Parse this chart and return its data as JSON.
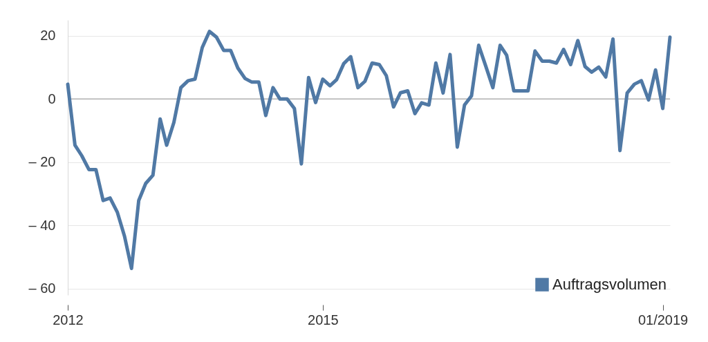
{
  "chart_data": {
    "type": "line",
    "x": [
      "2012-01",
      "2012-02",
      "2012-03",
      "2012-04",
      "2012-05",
      "2012-06",
      "2012-07",
      "2012-08",
      "2012-09",
      "2012-10",
      "2012-11",
      "2012-12",
      "2013-01",
      "2013-02",
      "2013-03",
      "2013-04",
      "2013-05",
      "2013-06",
      "2013-07",
      "2013-08",
      "2013-09",
      "2013-10",
      "2013-11",
      "2013-12",
      "2014-01",
      "2014-02",
      "2014-03",
      "2014-04",
      "2014-05",
      "2014-06",
      "2014-07",
      "2014-08",
      "2014-09",
      "2014-10",
      "2014-11",
      "2014-12",
      "2015-01",
      "2015-02",
      "2015-03",
      "2015-04",
      "2015-05",
      "2015-06",
      "2015-07",
      "2015-08",
      "2015-09",
      "2015-10",
      "2015-11",
      "2015-12",
      "2016-01",
      "2016-02",
      "2016-03",
      "2016-04",
      "2016-05",
      "2016-06",
      "2016-07",
      "2016-08",
      "2016-09",
      "2016-10",
      "2016-11",
      "2016-12",
      "2017-01",
      "2017-02",
      "2017-03",
      "2017-04",
      "2017-05",
      "2017-06",
      "2017-07",
      "2017-08",
      "2017-09",
      "2017-10",
      "2017-11",
      "2017-12",
      "2018-01",
      "2018-02",
      "2018-03",
      "2018-04",
      "2018-05",
      "2018-06",
      "2018-07",
      "2018-08",
      "2018-09",
      "2018-10",
      "2018-11",
      "2018-12",
      "2019-01",
      "2019-02"
    ],
    "series": [
      {
        "name": "Auftragsvolumen",
        "color": "#5079a5",
        "values": [
          4.7,
          -14.6,
          -17.9,
          -22.3,
          -22.3,
          -32.1,
          -31.3,
          -35.8,
          -43.4,
          -53.6,
          -32.1,
          -26.7,
          -24.1,
          -6.3,
          -14.6,
          -7.4,
          3.6,
          5.8,
          6.3,
          16.3,
          21.4,
          19.6,
          15.4,
          15.4,
          9.8,
          6.5,
          5.4,
          5.4,
          -5.2,
          3.6,
          0,
          0,
          -3,
          -20.5,
          6.8,
          -1.1,
          6.3,
          4.2,
          6.1,
          11.2,
          13.4,
          3.6,
          5.6,
          11.4,
          10.9,
          7.4,
          -2.5,
          2,
          2.6,
          -4.6,
          -1.2,
          -1.9,
          11.4,
          1.9,
          14.1,
          -15.2,
          -1.9,
          1,
          17,
          10.5,
          3.6,
          17,
          13.9,
          2.6,
          2.6,
          2.6,
          15.2,
          12,
          12,
          11.4,
          15.7,
          10.9,
          18.5,
          10.3,
          8.5,
          10.1,
          7,
          19,
          -16.3,
          1.9,
          4.7,
          5.8,
          -0.3,
          9.2,
          -3,
          19.6
        ]
      }
    ],
    "xlim": [
      "2012-01",
      "2019-02"
    ],
    "xticks": [
      {
        "value": "2012-01",
        "label": "2012"
      },
      {
        "value": "2015-01",
        "label": "2015"
      },
      {
        "value": "2019-01",
        "label": "01/2019"
      }
    ],
    "ylim": [
      -62,
      25
    ],
    "yticks": [
      {
        "value": -60,
        "label": "– 60"
      },
      {
        "value": -40,
        "label": "– 40"
      },
      {
        "value": -20,
        "label": "– 20"
      },
      0,
      20
    ],
    "ref_lines": [
      {
        "axis": "y",
        "value": 0,
        "color": "#b0b0b0"
      }
    ],
    "grid": "y",
    "legend": "bottom right",
    "line_style": "solid"
  }
}
